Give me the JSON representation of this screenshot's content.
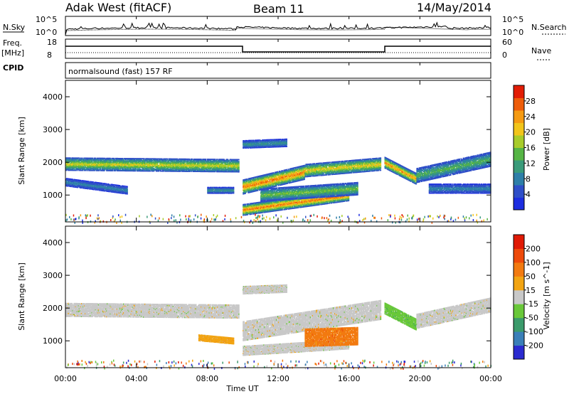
{
  "header": {
    "station": "Adak West (fitACF)",
    "beam": "Beam 11",
    "date": "14/May/2014"
  },
  "panels": {
    "nsky_label": "N.Sky",
    "nsearch_label": "N.Search",
    "freq_label": "Freq.",
    "freq_unit": "[MHz]",
    "nave_label": "Nave",
    "cpid_label": "CPID",
    "cpid_text": "normalsound (fast) 157 RF",
    "nsky_ticks": [
      "10^5",
      "10^0"
    ],
    "freq_ticks": [
      "18",
      "8"
    ],
    "nave_ticks": [
      "60",
      "0"
    ]
  },
  "chart_data": [
    {
      "type": "heatmap",
      "name": "power",
      "ylabel": "Slant Range [km]",
      "ylim": [
        180,
        4500
      ],
      "yticks": [
        "4000",
        "3000",
        "2000",
        "1000"
      ],
      "xticks": [
        "00:00",
        "04:00",
        "08:00",
        "12:00",
        "16:00",
        "20:00",
        "00:00"
      ],
      "xlim_hours": [
        0,
        24
      ],
      "colorbar": {
        "label": "Power [dB]",
        "ticks": [
          "28",
          "24",
          "20",
          "16",
          "12",
          "8",
          "4"
        ],
        "range": [
          0,
          32
        ],
        "colors": [
          "#1d2ee0",
          "#2f4fc8",
          "#2e7fa8",
          "#3a9b7a",
          "#56b545",
          "#a8cc2a",
          "#f2c51a",
          "#f59a12",
          "#ee5d0a",
          "#e21d05"
        ]
      },
      "bands": [
        {
          "t0": 0.0,
          "t1": 9.8,
          "r0": 1950,
          "r1": 1900,
          "width": 400,
          "peak": 20
        },
        {
          "t0": 0.0,
          "t1": 3.5,
          "r0": 1400,
          "r1": 1150,
          "width": 250,
          "peak": 8
        },
        {
          "t0": 8.0,
          "t1": 9.5,
          "r0": 1150,
          "r1": 1150,
          "width": 200,
          "peak": 10
        },
        {
          "t0": 10.0,
          "t1": 13.5,
          "r0": 1250,
          "r1": 1700,
          "width": 450,
          "peak": 28
        },
        {
          "t0": 13.5,
          "t1": 17.8,
          "r0": 1750,
          "r1": 1950,
          "width": 400,
          "peak": 22
        },
        {
          "t0": 10.0,
          "t1": 16.0,
          "r0": 550,
          "r1": 1000,
          "width": 350,
          "peak": 28
        },
        {
          "t0": 11.0,
          "t1": 16.5,
          "r0": 1000,
          "r1": 1200,
          "width": 400,
          "peak": 16
        },
        {
          "t0": 10.0,
          "t1": 12.5,
          "r0": 2550,
          "r1": 2600,
          "width": 250,
          "peak": 10
        },
        {
          "t0": 18.0,
          "t1": 19.8,
          "r0": 2000,
          "r1": 1500,
          "width": 350,
          "peak": 26
        },
        {
          "t0": 19.8,
          "t1": 24.0,
          "r0": 1600,
          "r1": 2100,
          "width": 450,
          "peak": 14
        },
        {
          "t0": 20.5,
          "t1": 24.0,
          "r0": 1200,
          "r1": 1200,
          "width": 300,
          "peak": 8
        }
      ]
    },
    {
      "type": "heatmap",
      "name": "velocity",
      "ylabel": "Slant Range [km]",
      "ylim": [
        180,
        4500
      ],
      "yticks": [
        "4000",
        "3000",
        "2000",
        "1000"
      ],
      "xticks": [
        "00:00",
        "04:00",
        "08:00",
        "12:00",
        "16:00",
        "20:00",
        "00:00"
      ],
      "xlabel": "Time UT",
      "xlim_hours": [
        0,
        24
      ],
      "colorbar": {
        "label": "Velocity [m s^-1]",
        "ticks": [
          "200",
          "100",
          "50",
          "15",
          "-15",
          "-50",
          "-100",
          "-200"
        ],
        "colors": [
          "#2b2bd0",
          "#3a7fb8",
          "#3b9b6b",
          "#69c839",
          "#c8c8c8",
          "#f2a412",
          "#f27a10",
          "#ee4a0a",
          "#e01a05"
        ]
      },
      "bands": [
        {
          "t0": 0.0,
          "t1": 9.8,
          "r0": 1950,
          "r1": 1900,
          "width": 420,
          "cls": 4
        },
        {
          "t0": 10.0,
          "t1": 17.8,
          "r0": 1300,
          "r1": 1950,
          "width": 600,
          "cls": 4
        },
        {
          "t0": 10.0,
          "t1": 16.0,
          "r0": 700,
          "r1": 900,
          "width": 300,
          "cls": 4
        },
        {
          "t0": 13.5,
          "t1": 16.5,
          "r0": 1100,
          "r1": 1150,
          "width": 550,
          "cls": 6
        },
        {
          "t0": 7.5,
          "t1": 9.5,
          "r0": 1100,
          "r1": 1000,
          "width": 200,
          "cls": 5
        },
        {
          "t0": 18.0,
          "t1": 19.8,
          "r0": 2000,
          "r1": 1500,
          "width": 350,
          "cls": 3
        },
        {
          "t0": 19.8,
          "t1": 24.0,
          "r0": 1600,
          "r1": 2100,
          "width": 450,
          "cls": 4
        },
        {
          "t0": 10.0,
          "t1": 12.5,
          "r0": 2550,
          "r1": 2600,
          "width": 250,
          "cls": 4
        }
      ]
    }
  ]
}
